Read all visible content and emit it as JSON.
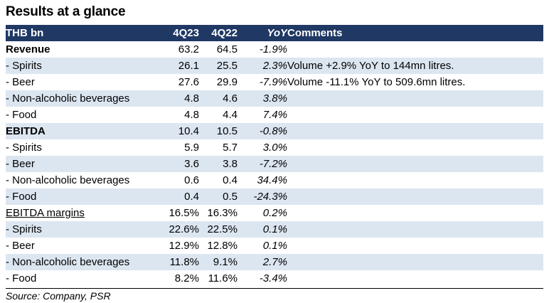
{
  "title": "Results at a glance",
  "table": {
    "headers": {
      "label": "THB bn",
      "q23": "4Q23",
      "q22": "4Q22",
      "yoy": "YoY",
      "comments": "Comments"
    },
    "rows": [
      {
        "label": "Revenue",
        "q23": "63.2",
        "q22": "64.5",
        "yoy": "-1.9%",
        "comment": ""
      },
      {
        "label": " - Spirits",
        "q23": "26.1",
        "q22": "25.5",
        "yoy": "2.3%",
        "comment": "Volume +2.9% YoY to 144mn litres."
      },
      {
        "label": " - Beer",
        "q23": "27.6",
        "q22": "29.9",
        "yoy": "-7.9%",
        "comment": "Volume -11.1% YoY to 509.6mn litres."
      },
      {
        "label": " - Non-alcoholic beverages",
        "q23": "4.8",
        "q22": "4.6",
        "yoy": "3.8%",
        "comment": ""
      },
      {
        "label": " - Food",
        "q23": "4.8",
        "q22": "4.4",
        "yoy": "7.4%",
        "comment": ""
      },
      {
        "label": "EBITDA",
        "q23": "10.4",
        "q22": "10.5",
        "yoy": "-0.8%",
        "comment": ""
      },
      {
        "label": " - Spirits",
        "q23": "5.9",
        "q22": "5.7",
        "yoy": "3.0%",
        "comment": ""
      },
      {
        "label": " - Beer",
        "q23": "3.6",
        "q22": "3.8",
        "yoy": "-7.2%",
        "comment": ""
      },
      {
        "label": " - Non-alcoholic beverages",
        "q23": "0.6",
        "q22": "0.4",
        "yoy": "34.4%",
        "comment": ""
      },
      {
        "label": " - Food",
        "q23": "0.4",
        "q22": "0.5",
        "yoy": "-24.3%",
        "comment": ""
      },
      {
        "label": "EBITDA margins",
        "q23": "16.5%",
        "q22": "16.3%",
        "yoy": "0.2%",
        "comment": ""
      },
      {
        "label": " - Spirits",
        "q23": "22.6%",
        "q22": "22.5%",
        "yoy": "0.1%",
        "comment": ""
      },
      {
        "label": " - Beer",
        "q23": "12.9%",
        "q22": "12.8%",
        "yoy": "0.1%",
        "comment": ""
      },
      {
        "label": " - Non-alcoholic beverages",
        "q23": "11.8%",
        "q22": "9.1%",
        "yoy": "2.7%",
        "comment": ""
      },
      {
        "label": " - Food",
        "q23": "8.2%",
        "q22": "11.6%",
        "yoy": "-3.4%",
        "comment": ""
      }
    ]
  },
  "source": "Source: Company, PSR",
  "colors": {
    "header_bg": "#1f3864",
    "header_text": "#ffffff",
    "alt_row_bg": "#dce6f1"
  }
}
